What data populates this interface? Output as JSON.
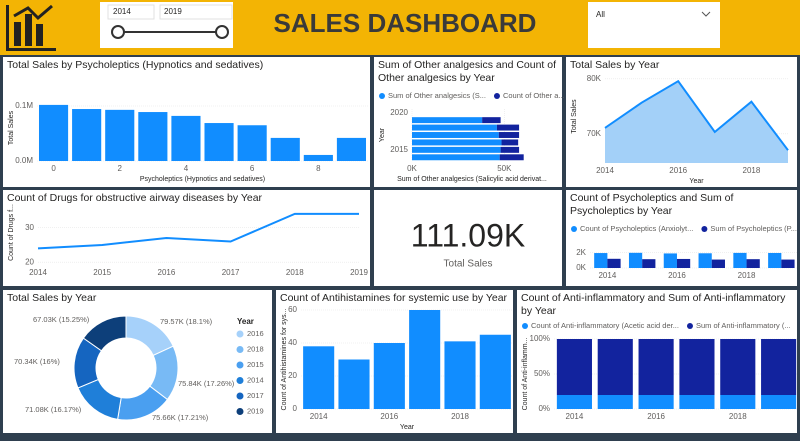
{
  "header": {
    "title": "SALES DASHBOARD",
    "slider_start": "2014",
    "slider_end": "2019",
    "dropdown": "All"
  },
  "chart_data": [
    {
      "type": "bar",
      "title": "Total Sales by Psycholeptics (Hypnotics and sedatives)",
      "x_label": "Psycholeptics (Hypnotics and sedatives)",
      "y_label": "Total Sales",
      "x": [
        0,
        1,
        2,
        3,
        4,
        5,
        6,
        7,
        8,
        9
      ],
      "values": [
        102000,
        94500,
        93000,
        89000,
        82000,
        69000,
        65000,
        42000,
        11000,
        42000
      ],
      "color": "#118dff",
      "xlim": [
        -0.5,
        9.5
      ],
      "xticks": [
        0,
        2,
        4,
        6,
        8
      ],
      "ylim": [
        0,
        120000
      ],
      "yticks": [
        {
          "value": 0,
          "label": "0.0M"
        },
        {
          "value": 100000,
          "label": "0.1M"
        }
      ],
      "grid": true
    },
    {
      "type": "barh",
      "title": "Sum of Other analgesics and Count of Other analgesics by Year",
      "x_label": "Sum of Other analgesics (Salicylic acid derivat...",
      "y_label": "Year",
      "y": [
        2014,
        2015,
        2016,
        2017,
        2018,
        2019
      ],
      "series": [
        {
          "name": "Sum of Other analgesics (S...",
          "color": "#118dff",
          "values": [
            47500,
            48000,
            48500,
            47000,
            46000,
            38000
          ]
        },
        {
          "name": "Count of Other a...",
          "color": "#12239e",
          "values": [
            13000,
            10000,
            9000,
            11000,
            12000,
            10000
          ]
        }
      ],
      "xlim": [
        0,
        65000
      ],
      "xticks": [
        {
          "value": 0,
          "label": "0K"
        },
        {
          "value": 50000,
          "label": "50K"
        }
      ],
      "ylim": [
        2013.5,
        2020.5
      ],
      "yticks": [
        2015,
        2020
      ],
      "grid": true
    },
    {
      "type": "area",
      "title": "Total Sales by Year",
      "x_label": "Year",
      "y_label": "Total Sales",
      "x": [
        2014,
        2015,
        2016,
        2017,
        2018,
        2019
      ],
      "values": [
        71080,
        75660,
        79570,
        70340,
        75840,
        67030
      ],
      "color": "#118dff",
      "fill_color": "#a3d0f8",
      "xlim": [
        2014,
        2019
      ],
      "xticks": [
        2014,
        2016,
        2018
      ],
      "ylim": [
        64700,
        81600
      ],
      "yticks": [
        {
          "value": 70000,
          "label": "70K"
        },
        {
          "value": 80000,
          "label": "80K"
        }
      ],
      "grid": true
    },
    {
      "type": "line",
      "title": "Count of Drugs for obstructive airway diseases by Year",
      "y_label": "Count of Drugs f...",
      "x": [
        2014,
        2015,
        2016,
        2017,
        2018,
        2019
      ],
      "values": [
        24,
        25,
        27,
        26,
        34,
        34
      ],
      "color": "#118dff",
      "xlim": [
        2014,
        2019
      ],
      "xticks": [
        2014,
        2015,
        2016,
        2017,
        2018,
        2019
      ],
      "ylim": [
        19.2,
        38
      ],
      "yticks": [
        20,
        30
      ],
      "grid": true
    },
    {
      "type": "card",
      "value": 111090,
      "value_label": "111.09K",
      "label": "Total Sales"
    },
    {
      "type": "groupedbar",
      "title": "Count of Psycholeptics and Sum of Psycholeptics by Year",
      "x": [
        2014,
        2015,
        2016,
        2017,
        2018,
        2019
      ],
      "series": [
        {
          "name": "Count of Psycholeptics (Anxiolyt...",
          "color": "#118dff",
          "values": [
            1950,
            1980,
            1900,
            1920,
            1970,
            1960
          ]
        },
        {
          "name": "Sum of Psycholeptics (P...",
          "color": "#12239e",
          "values": [
            1200,
            1150,
            1180,
            1100,
            1150,
            1100
          ]
        }
      ],
      "xlim": [
        2013.5,
        2019.45
      ],
      "xticks": [
        2014,
        2016,
        2018
      ],
      "ylim": [
        0,
        3000
      ],
      "yticks": [
        {
          "value": 0,
          "label": "0K"
        },
        {
          "value": 2000,
          "label": "2K"
        }
      ],
      "grid": true
    },
    {
      "type": "donut",
      "title": "Total Sales by Year",
      "legend_title": "Year",
      "categories": [
        "2016",
        "2018",
        "2015",
        "2014",
        "2017",
        "2019"
      ],
      "values": [
        79570,
        75840,
        75660,
        71080,
        70340,
        67030
      ],
      "value_labels": [
        "79.57K (18.1%)",
        "75.84K (17.26%)",
        "75.66K (17.21%)",
        "71.08K (16.17%)",
        "70.34K (16%)",
        "67.03K (15.25%)"
      ],
      "colors": [
        "#a6d1fa",
        "#78baf5",
        "#4a9ff0",
        "#1f7fd9",
        "#1565c0",
        "#0d3f7a"
      ]
    },
    {
      "type": "bar",
      "title": "Count of Antihistamines for systemic use by Year",
      "x_label": "Year",
      "y_label": "Count of Antihistamines for sys...",
      "x": [
        2014,
        2015,
        2016,
        2017,
        2018,
        2019
      ],
      "values": [
        38,
        30,
        40,
        60,
        41,
        45
      ],
      "color": "#118dff",
      "xlim": [
        2013.5,
        2019.5
      ],
      "xticks": [
        2014,
        2016,
        2018
      ],
      "ylim": [
        0,
        60
      ],
      "yticks": [
        0,
        20,
        40,
        60
      ],
      "grid": true
    },
    {
      "type": "stackedbar",
      "title": "Count of Anti-inflammatory and Sum of Anti-inflammatory by Year",
      "y_label": "Count of Anti-inflamm...",
      "x": [
        2014,
        2015,
        2016,
        2017,
        2018,
        2019
      ],
      "series": [
        {
          "name": "Count of Anti-inflammatory (Acetic acid der...",
          "color": "#118dff",
          "values": [
            20,
            20,
            20,
            20,
            20,
            20
          ]
        },
        {
          "name": "Sum of Anti-inflammatory (...",
          "color": "#12239e",
          "values": [
            80,
            80,
            80,
            80,
            80,
            80
          ]
        }
      ],
      "xlim": [
        2013.5,
        2019.45
      ],
      "xticks": [
        2014,
        2016,
        2018
      ],
      "ylim": [
        0,
        100
      ],
      "yticks": [
        {
          "value": 0,
          "label": "0%"
        },
        {
          "value": 50,
          "label": "50%"
        },
        {
          "value": 100,
          "label": "100%"
        }
      ],
      "grid": true
    }
  ]
}
